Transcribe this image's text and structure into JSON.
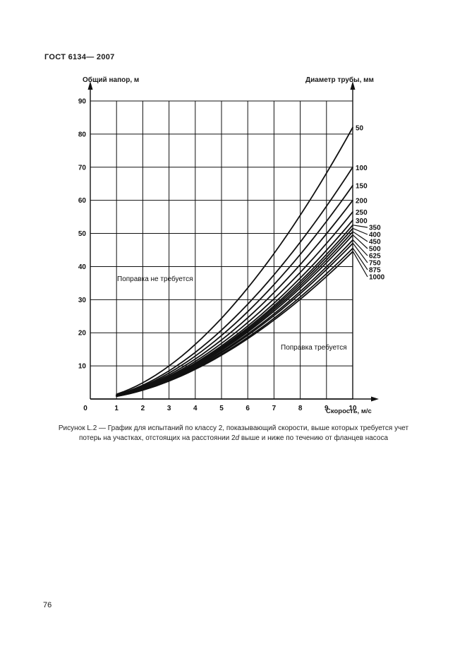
{
  "page": {
    "header": "ГОСТ 6134— 2007",
    "page_number": "76",
    "caption_line1": "Рисунок L.2 — График для испытаний по классу 2, показывающий скорости, выше которых требуется учет",
    "caption_line2_pre": "потерь на участках, отстоящих на расстоянии 2",
    "caption_line2_italic": "d",
    "caption_line2_post": " выше и ниже по течению от фланцев насоса"
  },
  "chart_data": {
    "type": "line",
    "title": "",
    "left_axis_label": "Общий напор, м",
    "right_axis_label": "Диаметр трубы, мм",
    "x_axis_label": "Скорость, м/с",
    "x_ticks": [
      0,
      1,
      2,
      3,
      4,
      5,
      6,
      7,
      8,
      9,
      10
    ],
    "y_ticks": [
      0,
      10,
      20,
      30,
      40,
      50,
      60,
      70,
      80,
      90
    ],
    "xlim": [
      0,
      10
    ],
    "ylim": [
      0,
      90
    ],
    "grid": true,
    "legend_position": "right-edge-labels",
    "annotation_no_correction": "Поправка не требуется",
    "annotation_correction": "Поправка требуется",
    "curve_model": {
      "type": "power",
      "exponent": 1.75,
      "v_start": 1,
      "v_end": 10
    },
    "curves": [
      {
        "diameter": "50",
        "h_at_v10": 82
      },
      {
        "diameter": "100",
        "h_at_v10": 70
      },
      {
        "diameter": "150",
        "h_at_v10": 64.5
      },
      {
        "diameter": "200",
        "h_at_v10": 60
      },
      {
        "diameter": "250",
        "h_at_v10": 56.5
      },
      {
        "diameter": "300",
        "h_at_v10": 54
      },
      {
        "diameter": "350",
        "h_at_v10": 52.5
      },
      {
        "diameter": "400",
        "h_at_v10": 51.5
      },
      {
        "diameter": "450",
        "h_at_v10": 50.5
      },
      {
        "diameter": "500",
        "h_at_v10": 49.5
      },
      {
        "diameter": "625",
        "h_at_v10": 48
      },
      {
        "diameter": "750",
        "h_at_v10": 47
      },
      {
        "diameter": "875",
        "h_at_v10": 45.5
      },
      {
        "diameter": "1000",
        "h_at_v10": 44.5
      }
    ],
    "colors": {
      "line": "#111111",
      "grid": "#111111",
      "text": "#111111"
    }
  }
}
